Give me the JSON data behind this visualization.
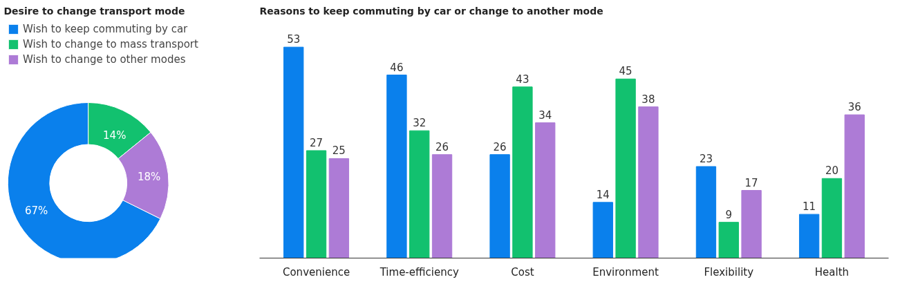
{
  "chart_data": [
    {
      "type": "donut",
      "title": "Desire to change transport mode",
      "categories": [
        "Wish to keep commuting by car",
        "Wish to change to mass transport",
        "Wish to change to other modes"
      ],
      "values": [
        67,
        14,
        18
      ],
      "colors": [
        "#0a80ec",
        "#12c16f",
        "#ad7bd6"
      ],
      "value_labels": [
        "67%",
        "14%",
        "18%"
      ],
      "legend": "top"
    },
    {
      "type": "bar",
      "title": "Reasons to keep commuting by car or change to another mode",
      "categories": [
        "Convenience",
        "Time-efficiency",
        "Cost",
        "Environment",
        "Flexibility",
        "Health"
      ],
      "data_labels": true,
      "series": [
        {
          "color": "#0a80ec",
          "values": [
            53,
            46,
            26,
            14,
            23,
            11
          ]
        },
        {
          "color": "#12c16f",
          "values": [
            27,
            32,
            43,
            45,
            9,
            20
          ]
        },
        {
          "color": "#ad7bd6",
          "values": [
            25,
            26,
            34,
            38,
            17,
            36
          ]
        }
      ]
    }
  ]
}
